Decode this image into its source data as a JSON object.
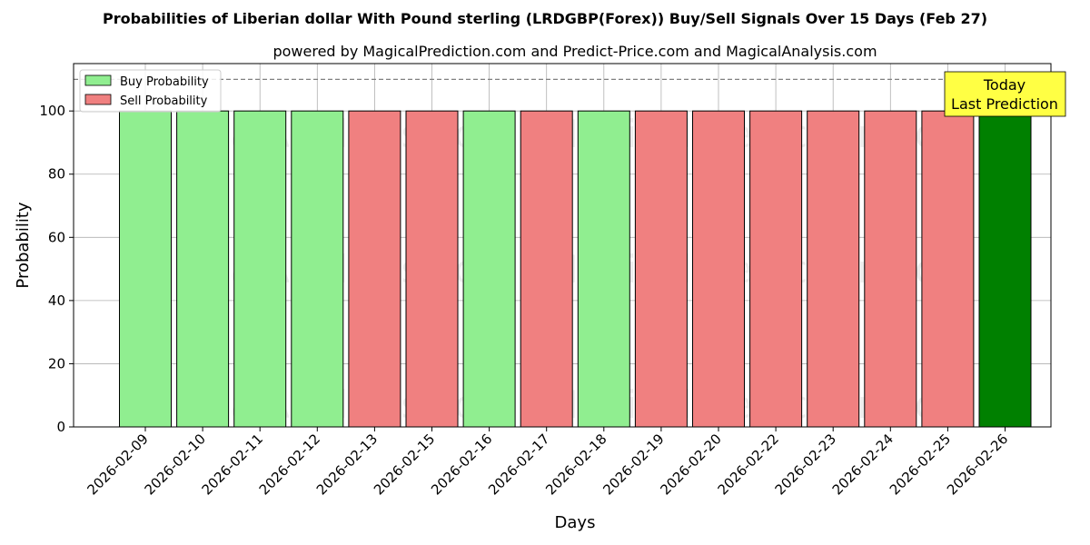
{
  "chart_data": {
    "type": "bar",
    "title": "Probabilities of Liberian dollar With Pound sterling (LRDGBP(Forex)) Buy/Sell Signals Over 15 Days (Feb 27)",
    "subtitle": "powered by MagicalPrediction.com and Predict-Price.com and MagicalAnalysis.com",
    "xlabel": "Days",
    "ylabel": "Probability",
    "ylim": [
      0,
      115
    ],
    "yticks": [
      "0",
      "20",
      "40",
      "60",
      "80",
      "100"
    ],
    "reference_line": 110,
    "grid": true,
    "legend_placement": "top-left",
    "categories": [
      "2026-02-09",
      "2026-02-10",
      "2026-02-11",
      "2026-02-12",
      "2026-02-13",
      "2026-02-15",
      "2026-02-16",
      "2026-02-17",
      "2026-02-18",
      "2026-02-19",
      "2026-02-20",
      "2026-02-22",
      "2026-02-23",
      "2026-02-24",
      "2026-02-25",
      "2026-02-26"
    ],
    "values": [
      100,
      100,
      100,
      100,
      100,
      100,
      100,
      100,
      100,
      100,
      100,
      100,
      100,
      100,
      100,
      100
    ],
    "signals": [
      "buy",
      "buy",
      "buy",
      "buy",
      "sell",
      "sell",
      "buy",
      "sell",
      "buy",
      "sell",
      "sell",
      "sell",
      "sell",
      "sell",
      "sell",
      "today"
    ],
    "series": [
      {
        "name": "Buy Probability",
        "color": "#90ee90"
      },
      {
        "name": "Sell Probability",
        "color": "#f08080"
      }
    ],
    "today_color": "#008000",
    "annotation": {
      "line1": "Today",
      "line2": "Last Prediction",
      "color": "#ffff44"
    },
    "watermarks": [
      "MagicalAnalysis.com",
      "MagicalPrediction.com"
    ]
  }
}
